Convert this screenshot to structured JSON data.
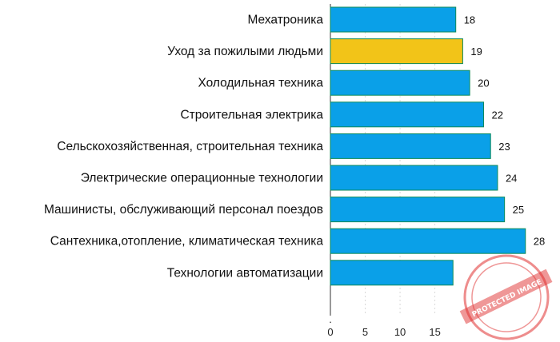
{
  "chart_data": {
    "type": "bar",
    "orientation": "horizontal",
    "categories": [
      "Мехатроника",
      "Уход за пожилыми людьми",
      "Холодильная техника",
      "Строительная электрика",
      "Сельскохозяйственная, строительная техника",
      "Электрические операционные технологии",
      "Машинисты, обслуживающий персонал поездов",
      "Сантехника,отопление, климатическая техника",
      "Технологии автоматизации"
    ],
    "values": [
      18,
      19,
      20,
      22,
      23,
      24,
      25,
      28,
      null
    ],
    "value_labels": [
      "18",
      "19",
      "20",
      "22",
      "23",
      "24",
      "25",
      "28",
      ""
    ],
    "bar_colors": [
      "#0aa0e8",
      "#f2c418",
      "#0aa0e8",
      "#0aa0e8",
      "#0aa0e8",
      "#0aa0e8",
      "#0aa0e8",
      "#0aa0e8",
      "#0aa0e8"
    ],
    "bar_edge_color": "#0d8a5a",
    "xaxis_ticks": [
      0,
      5,
      10,
      15
    ],
    "x_zero_label": ".",
    "xlim": [
      0,
      28.6
    ],
    "grid": "vertical dashed",
    "title": "",
    "xlabel": "",
    "ylabel": ""
  },
  "watermark": {
    "type": "stamp",
    "color": "#e03030",
    "text": "PROTECTED IMAGE"
  }
}
